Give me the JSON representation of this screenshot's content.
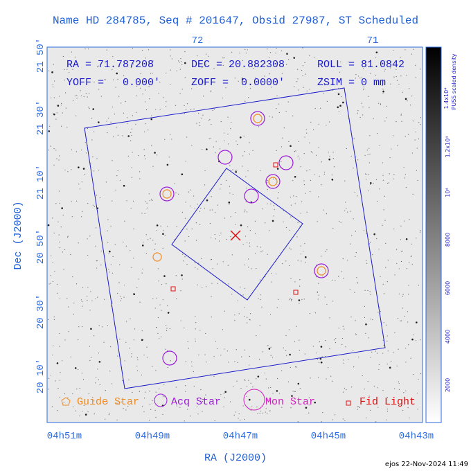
{
  "header": {
    "title": "Name HD 284785, Seq # 201647, Obsid 27987, ST Scheduled"
  },
  "info": [
    "RA = 71.787208",
    "DEC = 20.882308",
    "ROLL = 81.0842",
    "YOFF =   0.000'",
    "ZOFF =  0.0000'",
    "ZSIM = 0 mm"
  ],
  "top_ticks": [
    "72",
    "71"
  ],
  "bottom_ticks": [
    "04h51m",
    "04h49m",
    "04h47m",
    "04h45m",
    "04h43m"
  ],
  "left_ticks": [
    "21 50'",
    "21 30'",
    "21 10'",
    "20 50'",
    "20 30'",
    "20 10'"
  ],
  "x_label": "RA (J2000)",
  "y_label": "Dec (J2000)",
  "colorbar": {
    "label": "PUSS scaled density",
    "ticks": [
      "2000",
      "4000",
      "6000",
      "8000",
      "10⁴",
      "1.2x10⁴",
      "1.4x10⁴"
    ]
  },
  "legend": [
    "Guide Star",
    "Acq Star",
    "Mon Star",
    "Fid Light"
  ],
  "footer": "ejos 22-Nov-2024 11:49"
}
